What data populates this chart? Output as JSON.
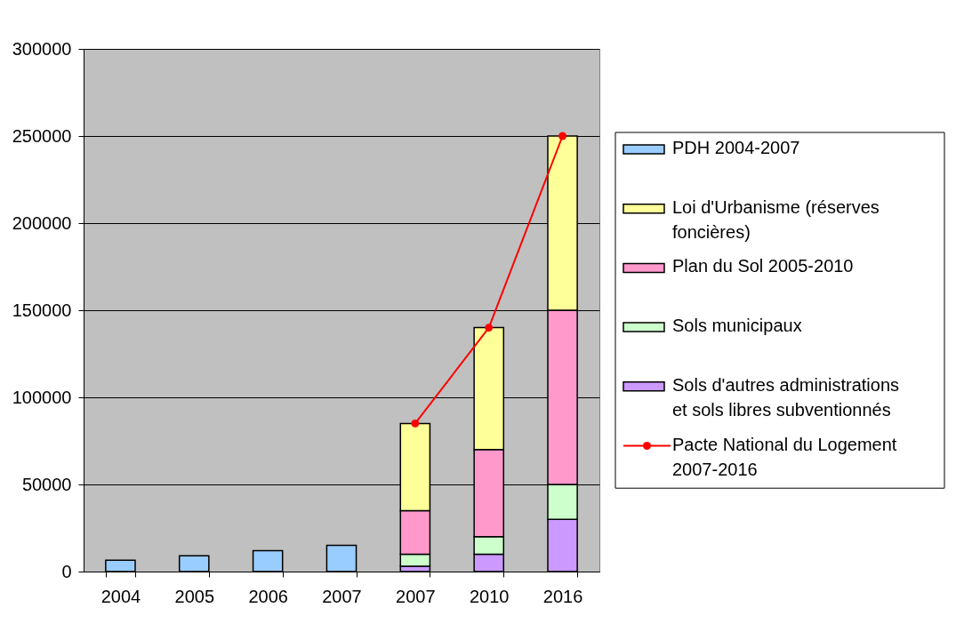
{
  "chart_data": {
    "type": "bar",
    "stacked": true,
    "categories": [
      "2004",
      "2005",
      "2006",
      "2007",
      "2007",
      "2010",
      "2016"
    ],
    "series": [
      {
        "name": "Sols d'autres administrations et sols libres subventionnés",
        "color": "#cc99ff",
        "values": [
          null,
          null,
          null,
          null,
          3000,
          10000,
          30000
        ]
      },
      {
        "name": "Sols municipaux",
        "color": "#ccffcc",
        "values": [
          null,
          null,
          null,
          null,
          7000,
          10000,
          20000
        ]
      },
      {
        "name": "Plan du Sol 2005-2010",
        "color": "#ff99cc",
        "values": [
          null,
          null,
          null,
          null,
          25000,
          50000,
          100000
        ]
      },
      {
        "name": "Loi d'Urbanisme (réserves foncières)",
        "color": "#ffff99",
        "values": [
          null,
          null,
          null,
          null,
          50000,
          70000,
          100000
        ]
      },
      {
        "name": "PDH 2004-2007",
        "color": "#99ccff",
        "values": [
          6500,
          9000,
          12000,
          15000,
          null,
          null,
          null
        ]
      },
      {
        "name": "Pacte National du Logement 2007-2016",
        "type": "line",
        "color": "#ff0000",
        "values": [
          null,
          null,
          null,
          null,
          85000,
          140000,
          250000
        ]
      }
    ],
    "ylim": [
      0,
      300000
    ],
    "yticks": [
      0,
      50000,
      100000,
      150000,
      200000,
      250000,
      300000
    ],
    "grid": "y",
    "legend": "right",
    "marker": "circle",
    "line_style": "solid"
  }
}
